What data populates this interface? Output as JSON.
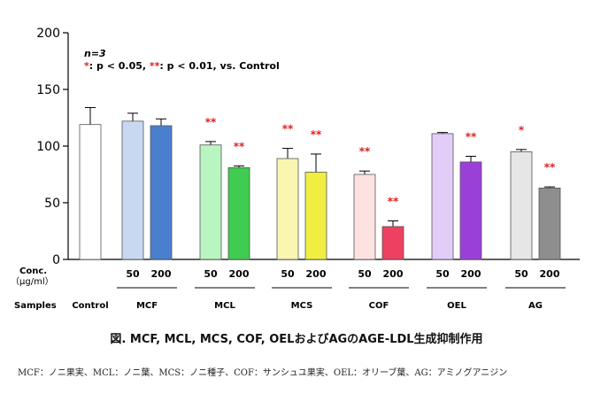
{
  "chart_data": {
    "type": "bar",
    "ylim": [
      0,
      200
    ],
    "yticks": [
      0,
      50,
      100,
      150,
      200
    ],
    "notes": {
      "n": "n=3",
      "significance_single": "*",
      "significance_single_text": ": p < 0.05, ",
      "significance_double": "**",
      "significance_double_text": ": p < 0.01, vs. Control"
    },
    "row_labels": {
      "concentration": "Conc.\n（μg/ml）",
      "samples": "Samples"
    },
    "groups": [
      {
        "sample": "Control",
        "bars": [
          {
            "conc": "",
            "value": 119,
            "error": 15,
            "color": "#ffffff",
            "sig": ""
          }
        ]
      },
      {
        "sample": "MCF",
        "bars": [
          {
            "conc": "50",
            "value": 122,
            "error": 7,
            "color": "#c8d8f0",
            "sig": ""
          },
          {
            "conc": "200",
            "value": 118,
            "error": 6,
            "color": "#4a7fd0",
            "sig": ""
          }
        ]
      },
      {
        "sample": "MCL",
        "bars": [
          {
            "conc": "50",
            "value": 101,
            "error": 3,
            "color": "#b8f5c0",
            "sig": "**"
          },
          {
            "conc": "200",
            "value": 81,
            "error": 1.5,
            "color": "#40cc50",
            "sig": "**"
          }
        ]
      },
      {
        "sample": "MCS",
        "bars": [
          {
            "conc": "50",
            "value": 89,
            "error": 9,
            "color": "#f8f6b0",
            "sig": "**"
          },
          {
            "conc": "200",
            "value": 77,
            "error": 16,
            "color": "#f0ee40",
            "sig": "**"
          }
        ]
      },
      {
        "sample": "COF",
        "bars": [
          {
            "conc": "50",
            "value": 75,
            "error": 3,
            "color": "#fde2e2",
            "sig": "**"
          },
          {
            "conc": "200",
            "value": 29,
            "error": 5,
            "color": "#ee4060",
            "sig": "**"
          }
        ]
      },
      {
        "sample": "OEL",
        "bars": [
          {
            "conc": "50",
            "value": 111,
            "error": 1,
            "color": "#e2cdf8",
            "sig": ""
          },
          {
            "conc": "200",
            "value": 86,
            "error": 5,
            "color": "#9a40d8",
            "sig": "**"
          }
        ]
      },
      {
        "sample": "AG",
        "bars": [
          {
            "conc": "50",
            "value": 95,
            "error": 2,
            "color": "#e6e6e6",
            "sig": "*"
          },
          {
            "conc": "200",
            "value": 63,
            "error": 1,
            "color": "#8e8e8e",
            "sig": "**"
          }
        ]
      }
    ]
  },
  "caption": "図. MCF, MCL, MCS, COF, OELおよびAGのAGE-LDL生成抑制作用",
  "footnote": "MCF：ノニ果実、MCL：ノニ葉、MCS：ノニ種子、COF：サンシュユ果実、OEL：オリーブ葉、AG：アミノグアニジン"
}
